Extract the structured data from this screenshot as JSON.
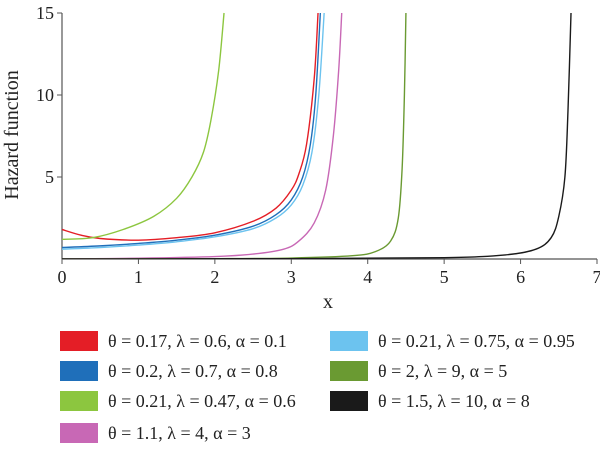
{
  "chart_data": {
    "type": "line",
    "xlabel": "x",
    "ylabel": "Hazard function",
    "xlim": [
      0,
      7
    ],
    "ylim": [
      0,
      15
    ],
    "x_ticks": [
      "0",
      "1",
      "2",
      "3",
      "4",
      "5",
      "6",
      "7"
    ],
    "y_ticks": [
      "5",
      "10",
      "15"
    ],
    "grid": false,
    "legend_position": "bottom",
    "series": [
      {
        "name": "θ = 0.17, λ = 0.6, α = 0.1",
        "color": "#e41e26",
        "points": [
          [
            0,
            1.8
          ],
          [
            0.25,
            1.45
          ],
          [
            0.5,
            1.25
          ],
          [
            1,
            1.15
          ],
          [
            1.5,
            1.3
          ],
          [
            2,
            1.6
          ],
          [
            2.5,
            2.3
          ],
          [
            2.8,
            3.1
          ],
          [
            3.0,
            4.2
          ],
          [
            3.1,
            5.2
          ],
          [
            3.2,
            7.0
          ],
          [
            3.3,
            11.0
          ],
          [
            3.35,
            15.0
          ]
        ]
      },
      {
        "name": "θ = 0.2, λ = 0.7, α = 0.8",
        "color": "#1f6fba",
        "points": [
          [
            0,
            0.7
          ],
          [
            0.5,
            0.8
          ],
          [
            1,
            0.95
          ],
          [
            1.5,
            1.15
          ],
          [
            2,
            1.45
          ],
          [
            2.5,
            2.0
          ],
          [
            2.8,
            2.7
          ],
          [
            3.0,
            3.6
          ],
          [
            3.15,
            5.0
          ],
          [
            3.25,
            7.0
          ],
          [
            3.32,
            10.0
          ],
          [
            3.38,
            15.0
          ]
        ]
      },
      {
        "name": "θ = 0.21, λ = 0.47, α = 0.6",
        "color": "#8cc63f",
        "points": [
          [
            0,
            1.2
          ],
          [
            0.4,
            1.3
          ],
          [
            0.8,
            1.8
          ],
          [
            1.2,
            2.6
          ],
          [
            1.5,
            3.7
          ],
          [
            1.7,
            5.0
          ],
          [
            1.85,
            6.5
          ],
          [
            1.95,
            8.5
          ],
          [
            2.05,
            11.5
          ],
          [
            2.12,
            15.0
          ]
        ]
      },
      {
        "name": "θ = 1.1, λ = 4, α = 3",
        "color": "#c868b5",
        "points": [
          [
            0,
            0.0
          ],
          [
            1,
            0.05
          ],
          [
            2,
            0.15
          ],
          [
            2.5,
            0.3
          ],
          [
            2.9,
            0.6
          ],
          [
            3.1,
            1.1
          ],
          [
            3.3,
            2.2
          ],
          [
            3.45,
            4.2
          ],
          [
            3.55,
            7.5
          ],
          [
            3.62,
            11.5
          ],
          [
            3.66,
            15.0
          ]
        ]
      },
      {
        "name": "θ = 0.21, λ = 0.75, α = 0.95",
        "color": "#6cc3ef",
        "points": [
          [
            0,
            0.6
          ],
          [
            0.5,
            0.7
          ],
          [
            1,
            0.85
          ],
          [
            1.5,
            1.05
          ],
          [
            2,
            1.35
          ],
          [
            2.5,
            1.85
          ],
          [
            2.8,
            2.5
          ],
          [
            3.0,
            3.3
          ],
          [
            3.15,
            4.5
          ],
          [
            3.27,
            6.5
          ],
          [
            3.36,
            10.0
          ],
          [
            3.43,
            15.0
          ]
        ]
      },
      {
        "name": "θ = 2, λ = 9, α = 5",
        "color": "#6a9a32",
        "points": [
          [
            0,
            0.0
          ],
          [
            2,
            0.02
          ],
          [
            3,
            0.06
          ],
          [
            3.8,
            0.2
          ],
          [
            4.1,
            0.45
          ],
          [
            4.3,
            1.1
          ],
          [
            4.4,
            2.5
          ],
          [
            4.45,
            5.5
          ],
          [
            4.48,
            10.0
          ],
          [
            4.5,
            15.0
          ]
        ]
      },
      {
        "name": "θ = 1.5, λ = 10, α = 8",
        "color": "#1a1a1a",
        "points": [
          [
            0,
            0.0
          ],
          [
            3,
            0.02
          ],
          [
            5,
            0.08
          ],
          [
            5.8,
            0.25
          ],
          [
            6.2,
            0.6
          ],
          [
            6.4,
            1.3
          ],
          [
            6.5,
            2.6
          ],
          [
            6.58,
            5.0
          ],
          [
            6.62,
            9.0
          ],
          [
            6.66,
            15.0
          ]
        ]
      }
    ]
  }
}
